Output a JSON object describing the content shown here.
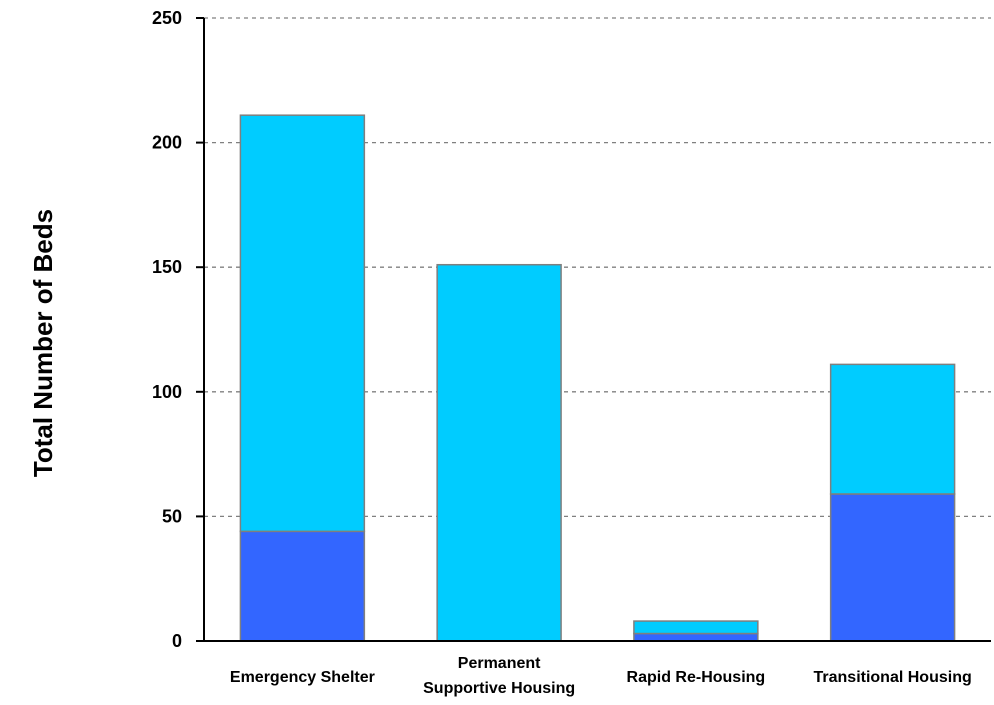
{
  "chart_data": {
    "type": "bar",
    "stacked": true,
    "title": "",
    "xlabel": "",
    "ylabel": "Total Number of Beds",
    "ylim": [
      0,
      250
    ],
    "yticks": [
      "0",
      "50",
      "100",
      "150",
      "200",
      "250"
    ],
    "grid": true,
    "legend": "none",
    "categories": [
      [
        "Emergency Shelter"
      ],
      [
        "Permanent",
        "Supportive Housing"
      ],
      [
        "Rapid Re-Housing"
      ],
      [
        "Transitional Housing"
      ]
    ],
    "series": [
      {
        "color": "#3366ff",
        "values": [
          44,
          0,
          3,
          59
        ]
      },
      {
        "color": "#00ccff",
        "values": [
          167,
          151,
          5,
          52
        ]
      }
    ]
  }
}
